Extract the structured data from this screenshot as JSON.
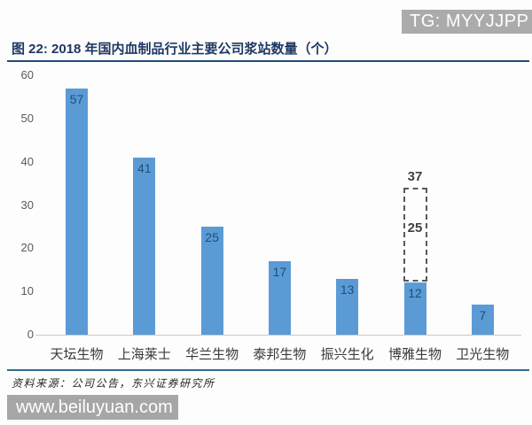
{
  "badge": {
    "text": "TG: MYYJJPP"
  },
  "figure": {
    "title": "图 22: 2018 年国内血制品行业主要公司浆站数量（个）",
    "source": "资料来源：公司公告，东兴证券研究所"
  },
  "watermark": {
    "text": "www.beiluyuan.com"
  },
  "theme": {
    "bar_color": "#5B9BD5",
    "value_label_color": "#1F4E79",
    "title_color": "#1F3864",
    "axis_text_color": "#595959",
    "annotation_color": "#404040",
    "badge_bg": "#ABABAB",
    "watermark_bg": "#A6A6A6"
  },
  "chart_data": {
    "type": "bar",
    "title": "2018 年国内血制品行业主要公司浆站数量（个）",
    "categories": [
      "天坛生物",
      "上海莱士",
      "华兰生物",
      "泰邦生物",
      "振兴生化",
      "博雅生物",
      "卫光生物"
    ],
    "values": [
      57,
      41,
      25,
      17,
      13,
      12,
      7
    ],
    "xlabel": "",
    "ylabel": "",
    "ylim": [
      0,
      60
    ],
    "ytick_step": 10,
    "yticks": [
      0,
      10,
      20,
      30,
      40,
      50,
      60
    ],
    "grid": false,
    "legend": "none",
    "annotation": {
      "category": "博雅生物",
      "current_value": 12,
      "planned_additional": 25,
      "planned_total": 37,
      "total_label": "37",
      "additional_label": "25",
      "box_top_value": 34,
      "box_bottom_value": 12.3
    }
  }
}
